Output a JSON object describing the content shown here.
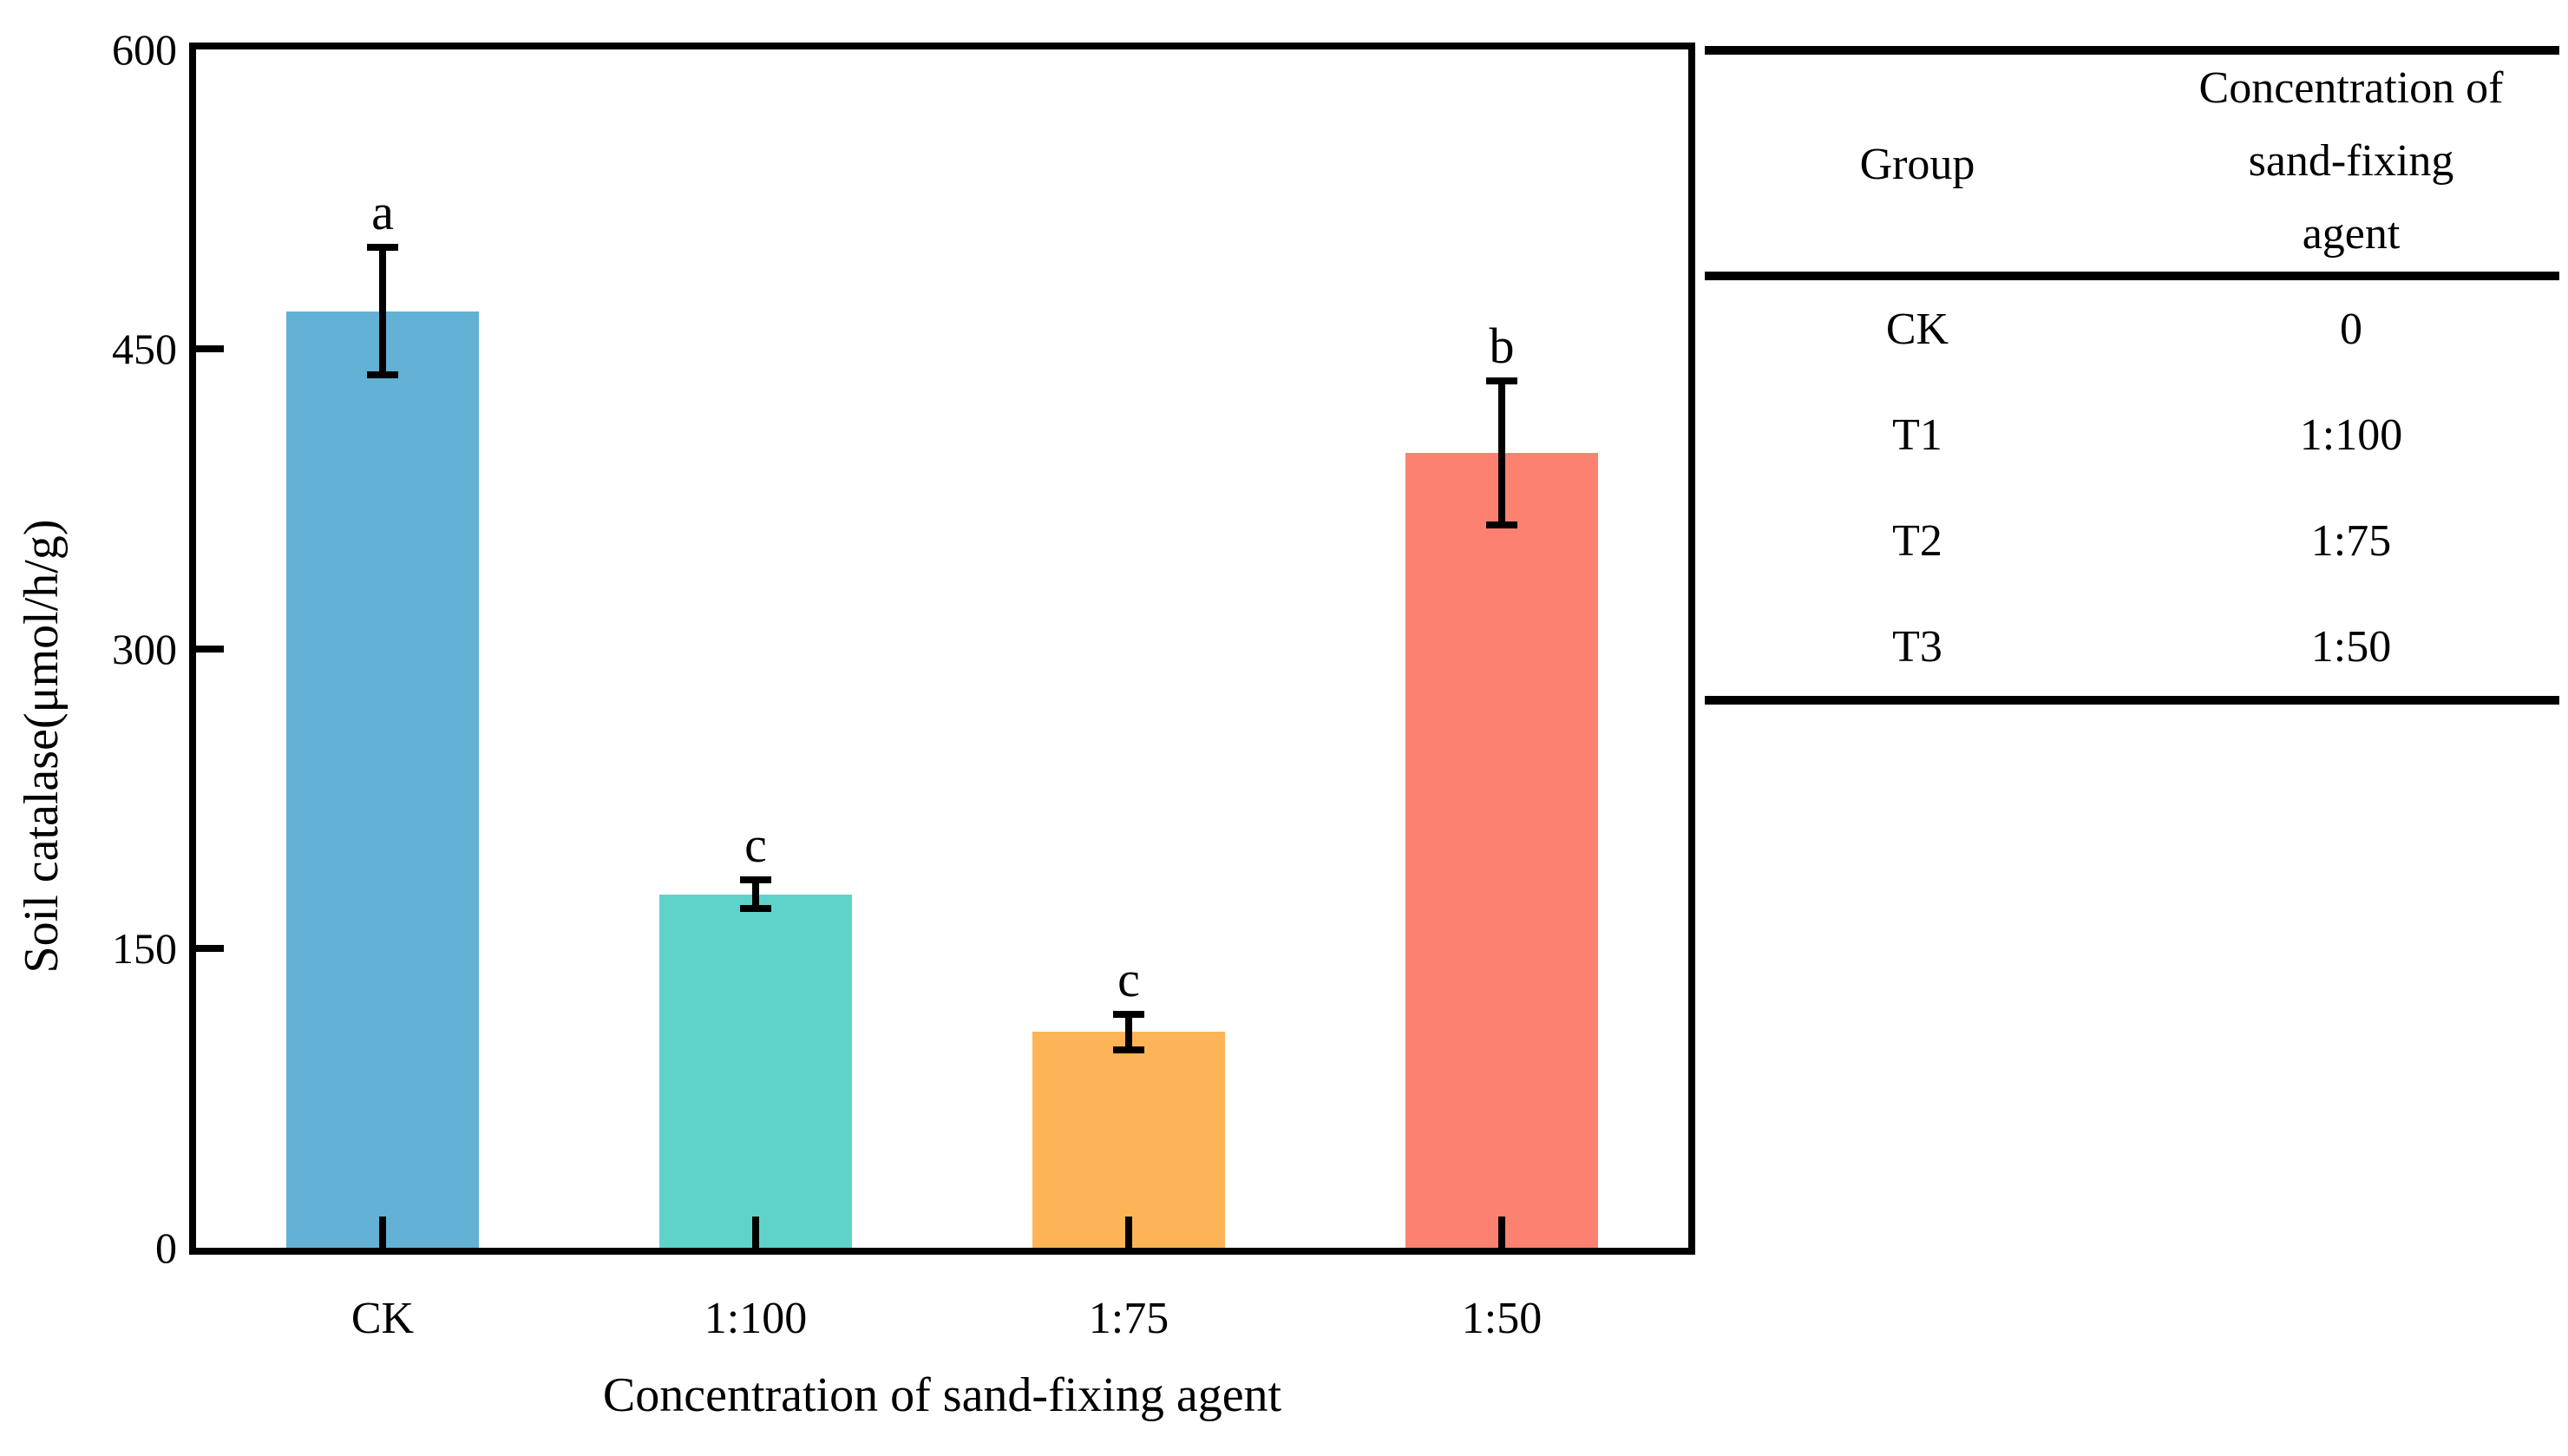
{
  "figure": {
    "background": "#ffffff",
    "text_color": "#000000"
  },
  "chart_data": {
    "type": "bar",
    "title": "",
    "categories": [
      "CK",
      "1:100",
      "1:75",
      "1:50"
    ],
    "values": [
      469,
      177,
      108,
      398
    ],
    "errors": [
      32,
      7,
      9,
      36
    ],
    "sig_letters": [
      "a",
      "c",
      "c",
      "b"
    ],
    "bar_colors": [
      "#63B1D5",
      "#5FD3CA",
      "#FDB456",
      "#FC8170"
    ],
    "xlabel": "Concentration of sand-fixing agent",
    "ylabel": "Soil catalase(μmol/h/g)",
    "ylim": [
      0,
      600
    ],
    "yticks": [
      0,
      150,
      300,
      450,
      600
    ],
    "grid": false,
    "legend": null,
    "tick_direction": "in",
    "axis_color": "#000000"
  },
  "table": {
    "headers": [
      "Group",
      "Concentration of sand-fixing agent"
    ],
    "rows": [
      {
        "group": "CK",
        "concentration": "0"
      },
      {
        "group": "T1",
        "concentration": "1:100"
      },
      {
        "group": "T2",
        "concentration": "1:75"
      },
      {
        "group": "T3",
        "concentration": "1:50"
      }
    ]
  }
}
